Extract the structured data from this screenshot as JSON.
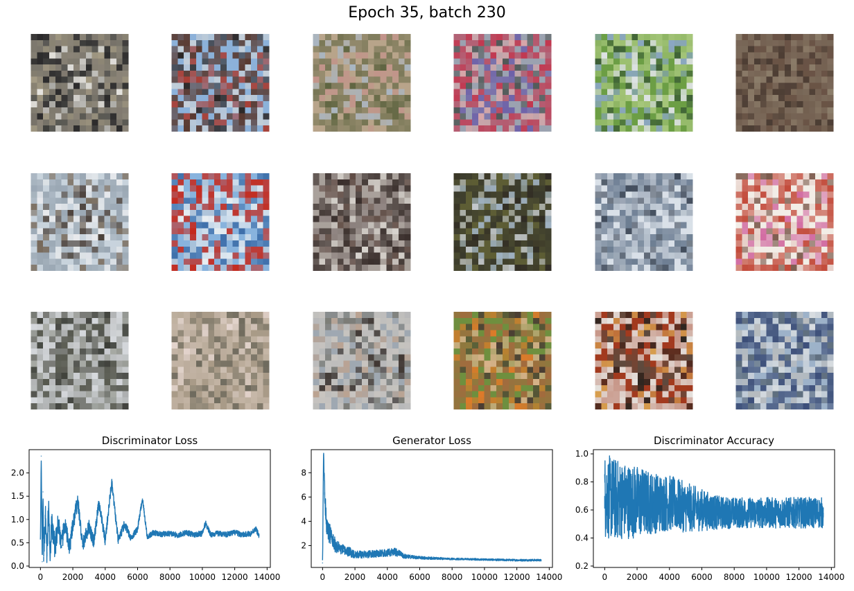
{
  "figure": {
    "title": "Epoch 35, batch 230"
  },
  "thumbnails": [
    {
      "row": 0,
      "col": 0,
      "palette": [
        "#5b5a55",
        "#8d8679",
        "#e5e3de",
        "#2b2a2b",
        "#a39a84"
      ]
    },
    {
      "row": 0,
      "col": 1,
      "palette": [
        "#8cb1d9",
        "#58382e",
        "#a83a2f",
        "#c7d0d8",
        "#2a2422"
      ]
    },
    {
      "row": 0,
      "col": 2,
      "palette": [
        "#b8a48a",
        "#7d7a5a",
        "#c2938a",
        "#a9b6c2",
        "#5e6440"
      ]
    },
    {
      "row": 0,
      "col": 3,
      "palette": [
        "#9ba2b0",
        "#c23850",
        "#6d60a8",
        "#4e5654",
        "#d8a6a8"
      ]
    },
    {
      "row": 0,
      "col": 4,
      "palette": [
        "#6c9e45",
        "#a6c67a",
        "#dfe3e5",
        "#3d5f36",
        "#8ba7c3"
      ]
    },
    {
      "row": 0,
      "col": 5,
      "palette": [
        "#6a5446",
        "#7b6a5a",
        "#4a3c33",
        "#8c7d6a",
        "#5a4a3e"
      ]
    },
    {
      "row": 1,
      "col": 0,
      "palette": [
        "#c8d3dc",
        "#9aa7b3",
        "#4a403a",
        "#e7e9ec",
        "#776a5b"
      ]
    },
    {
      "row": 1,
      "col": 1,
      "palette": [
        "#88b3dd",
        "#c42a1e",
        "#e9eef1",
        "#3d6ea9",
        "#b7c8d9"
      ]
    },
    {
      "row": 1,
      "col": 2,
      "palette": [
        "#a9a19b",
        "#3a2f2c",
        "#8a7f7c",
        "#d8d4ce",
        "#604c45"
      ]
    },
    {
      "row": 1,
      "col": 3,
      "palette": [
        "#5d5d35",
        "#3a3a2c",
        "#9fb1c1",
        "#2f2b24",
        "#c4c9ce"
      ]
    },
    {
      "row": 1,
      "col": 4,
      "palette": [
        "#d9e0e8",
        "#6b7c91",
        "#aeb9c6",
        "#3f4a5a",
        "#8a96a6"
      ]
    },
    {
      "row": 1,
      "col": 5,
      "palette": [
        "#f2ede6",
        "#c24a3a",
        "#d16aa1",
        "#7b5a4c",
        "#e7cfc8"
      ]
    },
    {
      "row": 2,
      "col": 0,
      "palette": [
        "#7a7c77",
        "#d6d9dd",
        "#57594f",
        "#a9aca7",
        "#3c3e38"
      ]
    },
    {
      "row": 2,
      "col": 1,
      "palette": [
        "#a99b88",
        "#c8b9aa",
        "#8d8575",
        "#e5d6cf",
        "#6e6a5d"
      ]
    },
    {
      "row": 2,
      "col": 2,
      "palette": [
        "#9fa8b1",
        "#c9c5c0",
        "#3f3631",
        "#7b7b75",
        "#bba391"
      ]
    },
    {
      "row": 2,
      "col": 3,
      "palette": [
        "#6f8f3f",
        "#a36a3e",
        "#d8b28a",
        "#dd7a2a",
        "#4a3c33"
      ]
    },
    {
      "row": 2,
      "col": 4,
      "palette": [
        "#a23a1f",
        "#e6e3df",
        "#5d4a3e",
        "#2b2520",
        "#d8a050"
      ]
    },
    {
      "row": 2,
      "col": 5,
      "palette": [
        "#9db2c9",
        "#3c4e78",
        "#d9dde0",
        "#5b6a7a",
        "#b9bcbe"
      ]
    }
  ],
  "chart_data": [
    {
      "type": "line",
      "title": "Discriminator Loss",
      "xlim": [
        -700,
        14200
      ],
      "ylim": [
        -0.03,
        2.5
      ],
      "xticks": [
        "0",
        "2000",
        "4000",
        "6000",
        "8000",
        "10000",
        "12000",
        "14000"
      ],
      "yticks": [
        "0.0",
        "0.5",
        "1.0",
        "1.5",
        "2.0"
      ],
      "series": [
        {
          "color": "#1f77b4",
          "x": [
            0,
            50,
            110,
            160,
            200,
            300,
            400,
            500,
            600,
            700,
            900,
            1100,
            1300,
            1500,
            1800,
            2000,
            2300,
            2600,
            3000,
            3300,
            3600,
            4000,
            4400,
            4800,
            5200,
            5600,
            6000,
            6300,
            6600,
            7000,
            7500,
            8000,
            8500,
            9000,
            9500,
            10000,
            10200,
            10500,
            11000,
            11500,
            12000,
            12500,
            13000,
            13300,
            13500
          ],
          "y": [
            0.6,
            2.37,
            0.1,
            1.6,
            0.2,
            1.1,
            0.3,
            1.25,
            0.35,
            0.9,
            0.4,
            0.95,
            0.45,
            0.9,
            0.4,
            0.85,
            1.42,
            0.45,
            0.85,
            0.5,
            1.35,
            0.55,
            1.8,
            0.55,
            0.9,
            0.6,
            0.8,
            1.45,
            0.62,
            0.72,
            0.68,
            0.7,
            0.66,
            0.72,
            0.67,
            0.7,
            0.93,
            0.68,
            0.7,
            0.68,
            0.72,
            0.67,
            0.7,
            0.8,
            0.66
          ],
          "spread": [
            0.05,
            0.05,
            0.05,
            0.05,
            0.35,
            0.3,
            0.3,
            0.3,
            0.3,
            0.28,
            0.26,
            0.24,
            0.22,
            0.2,
            0.18,
            0.18,
            0.17,
            0.16,
            0.15,
            0.14,
            0.13,
            0.12,
            0.11,
            0.1,
            0.09,
            0.08,
            0.07,
            0.07,
            0.07,
            0.06,
            0.06,
            0.06,
            0.06,
            0.06,
            0.06,
            0.06,
            0.06,
            0.06,
            0.06,
            0.06,
            0.06,
            0.06,
            0.06,
            0.06,
            0.06
          ]
        }
      ]
    },
    {
      "type": "line",
      "title": "Generator Loss",
      "xlim": [
        -700,
        14200
      ],
      "ylim": [
        0.2,
        9.9
      ],
      "xticks": [
        "0",
        "2000",
        "4000",
        "6000",
        "8000",
        "10000",
        "12000",
        "14000"
      ],
      "yticks": [
        "2",
        "4",
        "6",
        "8"
      ],
      "series": [
        {
          "color": "#1f77b4",
          "x": [
            0,
            60,
            130,
            200,
            300,
            450,
            600,
            800,
            1000,
            1300,
            1600,
            2000,
            2500,
            3000,
            3500,
            4000,
            4500,
            5000,
            5500,
            6000,
            7000,
            8000,
            9000,
            10000,
            11000,
            12000,
            13000,
            13500
          ],
          "y": [
            0.6,
            9.5,
            6.4,
            4.5,
            3.2,
            3.0,
            2.4,
            2.0,
            1.8,
            1.6,
            1.5,
            1.3,
            1.25,
            1.3,
            1.35,
            1.4,
            1.5,
            1.15,
            1.05,
            1.0,
            0.95,
            0.9,
            0.88,
            0.85,
            0.82,
            0.8,
            0.8,
            0.8
          ],
          "spread": [
            0.2,
            0.4,
            0.8,
            1.0,
            0.9,
            0.8,
            0.7,
            0.6,
            0.5,
            0.45,
            0.4,
            0.35,
            0.3,
            0.3,
            0.3,
            0.3,
            0.35,
            0.2,
            0.15,
            0.12,
            0.1,
            0.08,
            0.08,
            0.08,
            0.08,
            0.08,
            0.08,
            0.08
          ]
        }
      ]
    },
    {
      "type": "line",
      "title": "Discriminator Accuracy",
      "xlim": [
        -700,
        14200
      ],
      "ylim": [
        0.19,
        1.03
      ],
      "xticks": [
        "0",
        "2000",
        "4000",
        "6000",
        "8000",
        "10000",
        "12000",
        "14000"
      ],
      "yticks": [
        "0.2",
        "0.4",
        "0.6",
        "0.8",
        "1.0"
      ],
      "series": [
        {
          "color": "#1f77b4",
          "x": [
            0,
            500,
            1000,
            2000,
            3000,
            4000,
            5000,
            6000,
            7000,
            8000,
            9000,
            10000,
            11000,
            12000,
            13000,
            13500
          ],
          "y": [
            0.7,
            0.68,
            0.67,
            0.66,
            0.65,
            0.65,
            0.62,
            0.6,
            0.58,
            0.58,
            0.58,
            0.58,
            0.58,
            0.58,
            0.58,
            0.58
          ],
          "spread": [
            0.3,
            0.3,
            0.28,
            0.26,
            0.22,
            0.2,
            0.18,
            0.15,
            0.12,
            0.11,
            0.11,
            0.11,
            0.11,
            0.11,
            0.11,
            0.11
          ]
        }
      ]
    }
  ]
}
